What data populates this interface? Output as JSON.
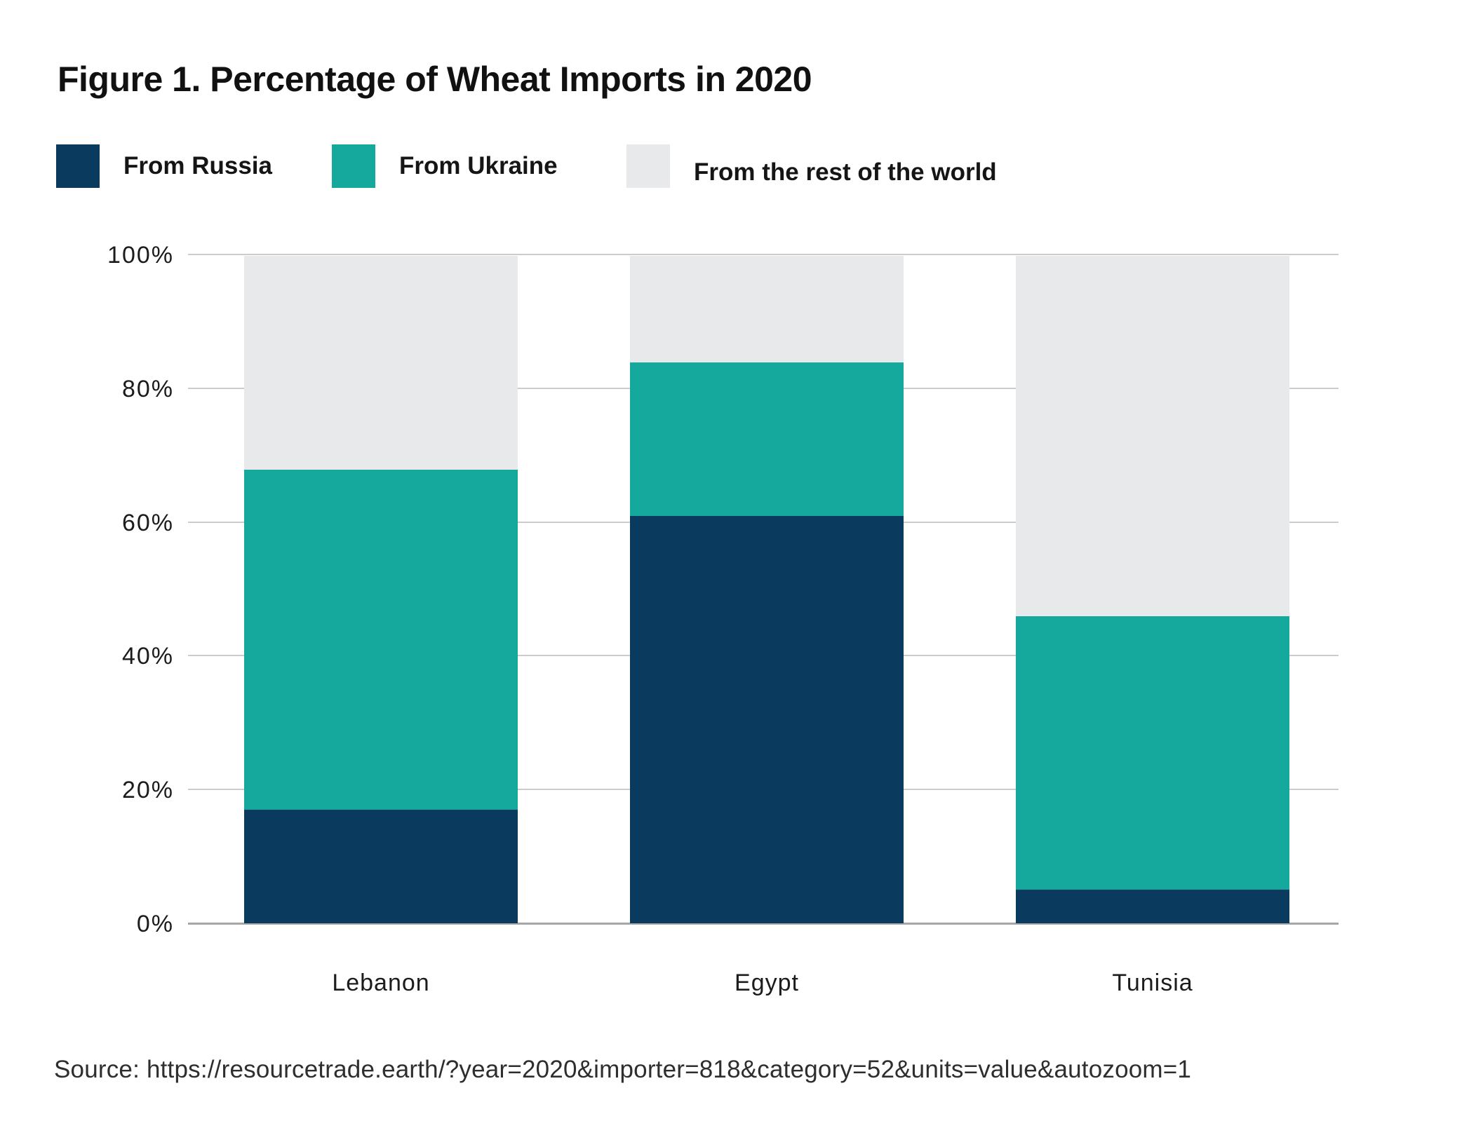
{
  "figure": {
    "title": "Figure 1. Percentage of Wheat Imports in 2020",
    "source_line": "Source: https://resourcetrade.earth/?year=2020&importer=818&category=52&units=value&autozoom=1"
  },
  "legend": {
    "items": [
      {
        "label": "From Russia",
        "color": "#0a3a5d"
      },
      {
        "label": "From Ukraine",
        "color": "#15a89c"
      },
      {
        "label": "From the rest of the world",
        "color": "#e8e9ea"
      }
    ]
  },
  "chart_data": {
    "type": "bar",
    "stacked": true,
    "orientation": "vertical",
    "title": "Figure 1. Percentage of Wheat Imports in 2020",
    "categories": [
      "Lebanon",
      "Egypt",
      "Tunisia"
    ],
    "series": [
      {
        "name": "From Russia",
        "key": "from-russia",
        "color": "#0a3a5d",
        "values": [
          17,
          61,
          5
        ]
      },
      {
        "name": "From Ukraine",
        "key": "from-ukraine",
        "color": "#15a89c",
        "values": [
          51,
          23,
          41
        ]
      },
      {
        "name": "From the rest of the world",
        "key": "from-rest-of-world",
        "color": "#e8e9ea",
        "values": [
          32,
          16,
          54
        ]
      }
    ],
    "xlabel": "",
    "ylabel": "",
    "ylim": [
      0,
      100
    ],
    "yticks": [
      0,
      20,
      40,
      60,
      80,
      100
    ],
    "ytick_labels": [
      "0%",
      "20%",
      "40%",
      "60%",
      "80%",
      "100%"
    ],
    "grid": "horizontal",
    "legend_position": "top-left"
  },
  "colors": {
    "russia": "#0a3a5d",
    "ukraine": "#15a89c",
    "rest_of_world": "#e8e9ea",
    "gridline": "#cccccc",
    "axis_line": "#a6a6a6",
    "text": "#151515",
    "background": "#ffffff"
  }
}
